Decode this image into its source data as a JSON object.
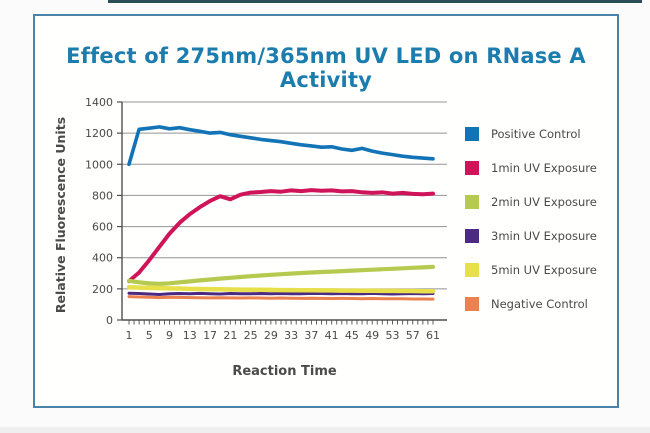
{
  "colors": {
    "title": "#1a7dad",
    "panel_border": "#4a83aa",
    "top_bar": "#2b4d55",
    "grid": "#949494",
    "axis": "#4f4f4f",
    "tick_text": "#4a4a4a",
    "label_text": "#4a4a4a",
    "legend_text": "#4a4a4a"
  },
  "chart_data": {
    "type": "line",
    "title": "Effect of 275nm/365nm UV LED on RNase A Activity",
    "xlabel": "Reaction Time",
    "ylabel": "Relative Fluorescence Units",
    "grid": true,
    "legend_position": "right",
    "ylim": [
      0,
      1400
    ],
    "y_ticks": [
      0,
      200,
      400,
      600,
      800,
      1000,
      1200,
      1400
    ],
    "x_tick_labels": [
      1,
      5,
      9,
      13,
      17,
      21,
      25,
      29,
      33,
      37,
      41,
      45,
      49,
      53,
      57,
      61
    ],
    "x_minor_tick_step": 1,
    "x": [
      1,
      3,
      5,
      7,
      9,
      11,
      13,
      15,
      17,
      19,
      21,
      23,
      25,
      27,
      29,
      31,
      33,
      35,
      37,
      39,
      41,
      43,
      45,
      47,
      49,
      51,
      53,
      55,
      57,
      59,
      61
    ],
    "series": [
      {
        "name": "Positive Control",
        "color": "#1274b6",
        "width": 3.6,
        "values": [
          1000,
          1225,
          1232,
          1240,
          1228,
          1235,
          1222,
          1212,
          1200,
          1205,
          1190,
          1180,
          1170,
          1160,
          1152,
          1145,
          1135,
          1125,
          1118,
          1110,
          1112,
          1098,
          1090,
          1102,
          1085,
          1072,
          1062,
          1052,
          1045,
          1040,
          1035
        ]
      },
      {
        "name": "1min UV Exposure",
        "color": "#d01459",
        "width": 4,
        "values": [
          250,
          305,
          385,
          470,
          555,
          625,
          680,
          725,
          765,
          795,
          775,
          805,
          818,
          822,
          828,
          824,
          832,
          828,
          834,
          830,
          832,
          826,
          828,
          820,
          816,
          820,
          812,
          816,
          810,
          808,
          812
        ]
      },
      {
        "name": "2min UV Exposure",
        "color": "#b6ca4f",
        "width": 4.2,
        "values": [
          252,
          242,
          235,
          232,
          236,
          242,
          248,
          254,
          260,
          266,
          271,
          276,
          281,
          286,
          290,
          294,
          298,
          302,
          305,
          308,
          311,
          314,
          317,
          320,
          323,
          326,
          329,
          332,
          335,
          338,
          341
        ]
      },
      {
        "name": "3min UV Exposure",
        "color": "#4c2a82",
        "width": 3,
        "values": [
          172,
          170,
          167,
          164,
          168,
          170,
          168,
          171,
          169,
          167,
          170,
          169,
          168,
          170,
          169,
          170,
          168,
          169,
          171,
          170,
          168,
          170,
          169,
          168,
          171,
          169,
          167,
          169,
          170,
          169,
          170
        ]
      },
      {
        "name": "5min UV Exposure",
        "color": "#e7e04a",
        "width": 4.5,
        "values": [
          210,
          208,
          206,
          205,
          203,
          202,
          200,
          199,
          198,
          197,
          196,
          195,
          194,
          194,
          193,
          192,
          192,
          191,
          191,
          190,
          190,
          189,
          189,
          188,
          188,
          187,
          187,
          186,
          186,
          185,
          185
        ]
      },
      {
        "name": "Negative Control",
        "color": "#ec8150",
        "width": 3,
        "values": [
          150,
          148,
          146,
          144,
          146,
          145,
          144,
          143,
          142,
          143,
          142,
          141,
          142,
          141,
          140,
          141,
          140,
          139,
          140,
          139,
          138,
          139,
          138,
          137,
          138,
          137,
          136,
          136,
          135,
          135,
          134
        ]
      }
    ]
  }
}
